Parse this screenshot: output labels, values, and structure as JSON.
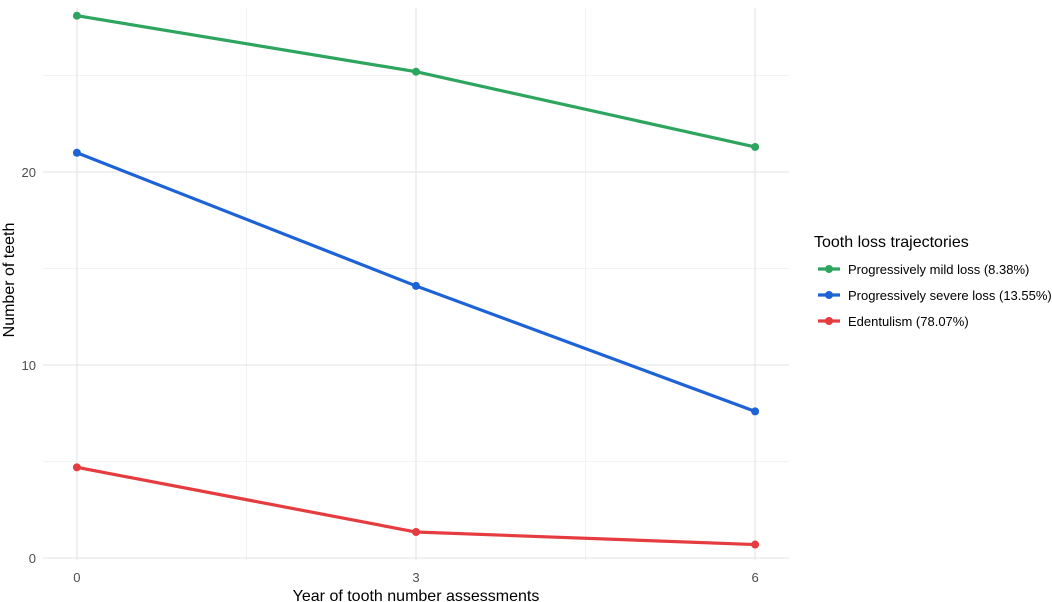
{
  "chart_data": {
    "type": "line",
    "title": "",
    "xlabel": "Year of tooth number assessments",
    "ylabel": "Number of teeth",
    "x": [
      0,
      3,
      6
    ],
    "x_ticks": [
      "0",
      "3",
      "6"
    ],
    "xlim": [
      -0.3,
      6.3
    ],
    "y_ticks": [
      "0",
      "10",
      "20"
    ],
    "ylim": [
      -0.1,
      28.5
    ],
    "grid": true,
    "legend": {
      "title": "Tooth loss trajectories",
      "placement": "right"
    },
    "series": [
      {
        "name": "Progressively mild loss (8.38%)",
        "color": "#2ea55f",
        "values": [
          28.1,
          25.2,
          21.3
        ]
      },
      {
        "name": "Progressively severe loss (13.55%)",
        "color": "#1d63d6",
        "values": [
          21.0,
          14.1,
          7.6
        ]
      },
      {
        "name": "Edentulism (78.07%)",
        "color": "#e53c3f",
        "values": [
          4.7,
          1.35,
          0.7
        ]
      }
    ]
  }
}
